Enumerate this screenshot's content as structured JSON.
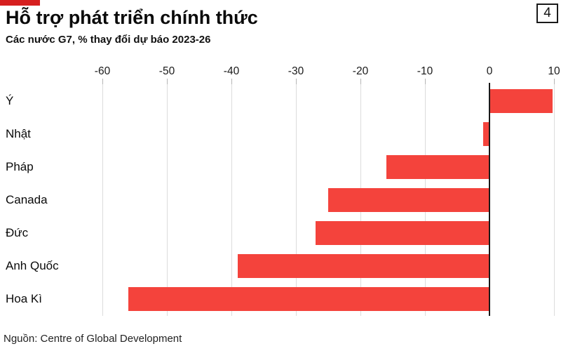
{
  "page": {
    "number": "4"
  },
  "header": {
    "title": "Hỗ trợ phát triển chính thức",
    "subtitle": "Các nước G7, % thay đổi dự báo 2023-26",
    "accent_color": "#d61f1f"
  },
  "chart_data": {
    "type": "bar",
    "orientation": "horizontal",
    "title": "Hỗ trợ phát triển chính thức",
    "subtitle": "Các nước G7, % thay đổi dự báo 2023-26",
    "categories": [
      "Ý",
      "Nhật",
      "Pháp",
      "Canada",
      "Đức",
      "Anh Quốc",
      "Hoa Kì"
    ],
    "values": [
      9.8,
      -1,
      -16,
      -25,
      -27,
      -39,
      -56
    ],
    "xlabel": "",
    "ylabel": "",
    "xlim": [
      -60,
      10
    ],
    "xticks": [
      "-60",
      "-50",
      "-40",
      "-30",
      "-20",
      "-10",
      "0",
      "10"
    ],
    "xtick_values": [
      -60,
      -50,
      -40,
      -30,
      -20,
      -10,
      0,
      10
    ],
    "grid": true,
    "legend": false,
    "bar_color": "#f4433c",
    "axis_color": "#1a1a1a",
    "gridline_color": "#dcdcdc"
  },
  "footer": {
    "source": "Nguồn: Centre of Global Development"
  }
}
